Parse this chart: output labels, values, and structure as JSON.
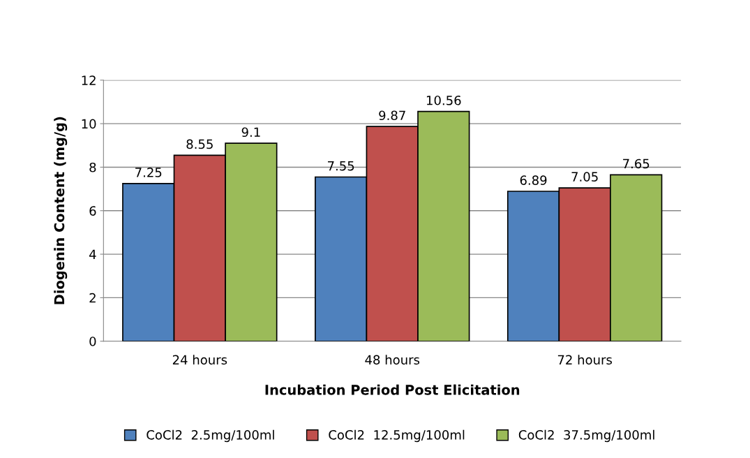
{
  "chart_data": {
    "type": "bar",
    "xlabel": "Incubation Period Post Elicitation",
    "ylabel": "Diogenin Content (mg/g)",
    "categories": [
      "24 hours",
      "48 hours",
      "72 hours"
    ],
    "series": [
      {
        "name": "CoCl2  2.5mg/100ml",
        "color": "#4f81bd",
        "values": [
          7.25,
          7.55,
          6.89
        ]
      },
      {
        "name": "CoCl2  12.5mg/100ml",
        "color": "#c0504d",
        "values": [
          8.55,
          9.87,
          7.05
        ]
      },
      {
        "name": "CoCl2  37.5mg/100ml",
        "color": "#9bbb59",
        "values": [
          9.1,
          10.56,
          7.65
        ]
      }
    ],
    "ylim": [
      0,
      12
    ],
    "yticks": [
      0,
      2,
      4,
      6,
      8,
      10,
      12
    ],
    "grid": "y",
    "legend": "bottom",
    "data_labels": true
  }
}
